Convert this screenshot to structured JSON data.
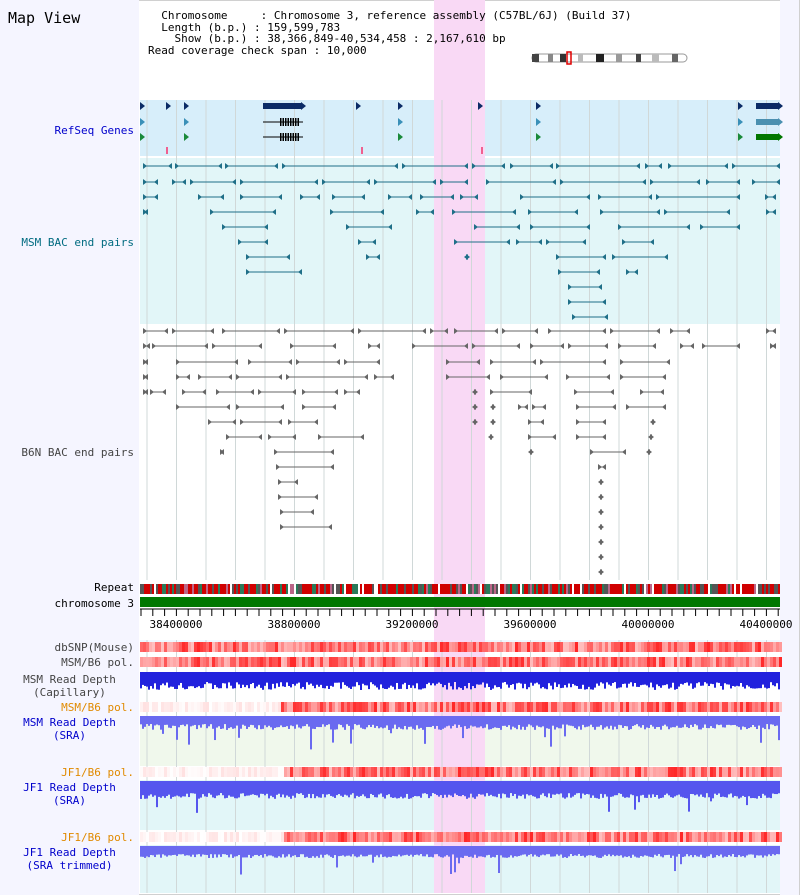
{
  "window": {
    "title": "Map View"
  },
  "header": {
    "chromosome_label": "Chromosome",
    "chromosome_value": "Chromosome 3, reference assembly (C57BL/6J) (Build 37)",
    "length_label": "Length (b.p.)",
    "length_value": "159,599,783",
    "show_label": "Show (b.p.)",
    "show_value": "38,366,849-40,534,458 : 2,167,610 bp",
    "coverage_label": "Read coverage check span",
    "coverage_value": "10,000"
  },
  "tracks": {
    "refseq": "RefSeq Genes",
    "msm_bac": "MSM BAC end pairs",
    "b6n_bac": "B6N BAC end pairs",
    "repeat": "Repeat",
    "chromosome": "chromosome 3",
    "dbsnp": "dbSNP(Mouse)",
    "msm_b6_pol_1": "MSM/B6 pol.",
    "msm_read_depth_cap_1": "MSM Read Depth",
    "msm_read_depth_cap_2": "(Capillary)",
    "msm_b6_pol_2": "MSM/B6 pol.",
    "msm_read_depth_sra_1": "MSM Read Depth",
    "msm_read_depth_sra_2": "(SRA)",
    "jf1_b6_pol_1": "JF1/B6 pol.",
    "jf1_read_depth_sra_1": "JF1 Read Depth",
    "jf1_read_depth_sra_2": "(SRA)",
    "jf1_b6_pol_2": "JF1/B6 pol.",
    "jf1_read_depth_trim_1": "JF1 Read Depth",
    "jf1_read_depth_trim_2": "(SRA trimmed)"
  },
  "axis": {
    "ticks": [
      "38400000",
      "38800000",
      "39200000",
      "39600000",
      "40000000",
      "40400000"
    ]
  },
  "colors": {
    "highlight": "#f9d9f5",
    "refseq_bg": "#d7eefa",
    "msm_bg": "#e2f6f8",
    "label_blue": "#0000cc",
    "label_teal": "#006b80",
    "label_orange": "#e08a00",
    "read_depth_blue": "#2222ee",
    "chromosome_green": "#007700"
  },
  "icons": {
    "ideogram": "chromosome-ideogram"
  }
}
